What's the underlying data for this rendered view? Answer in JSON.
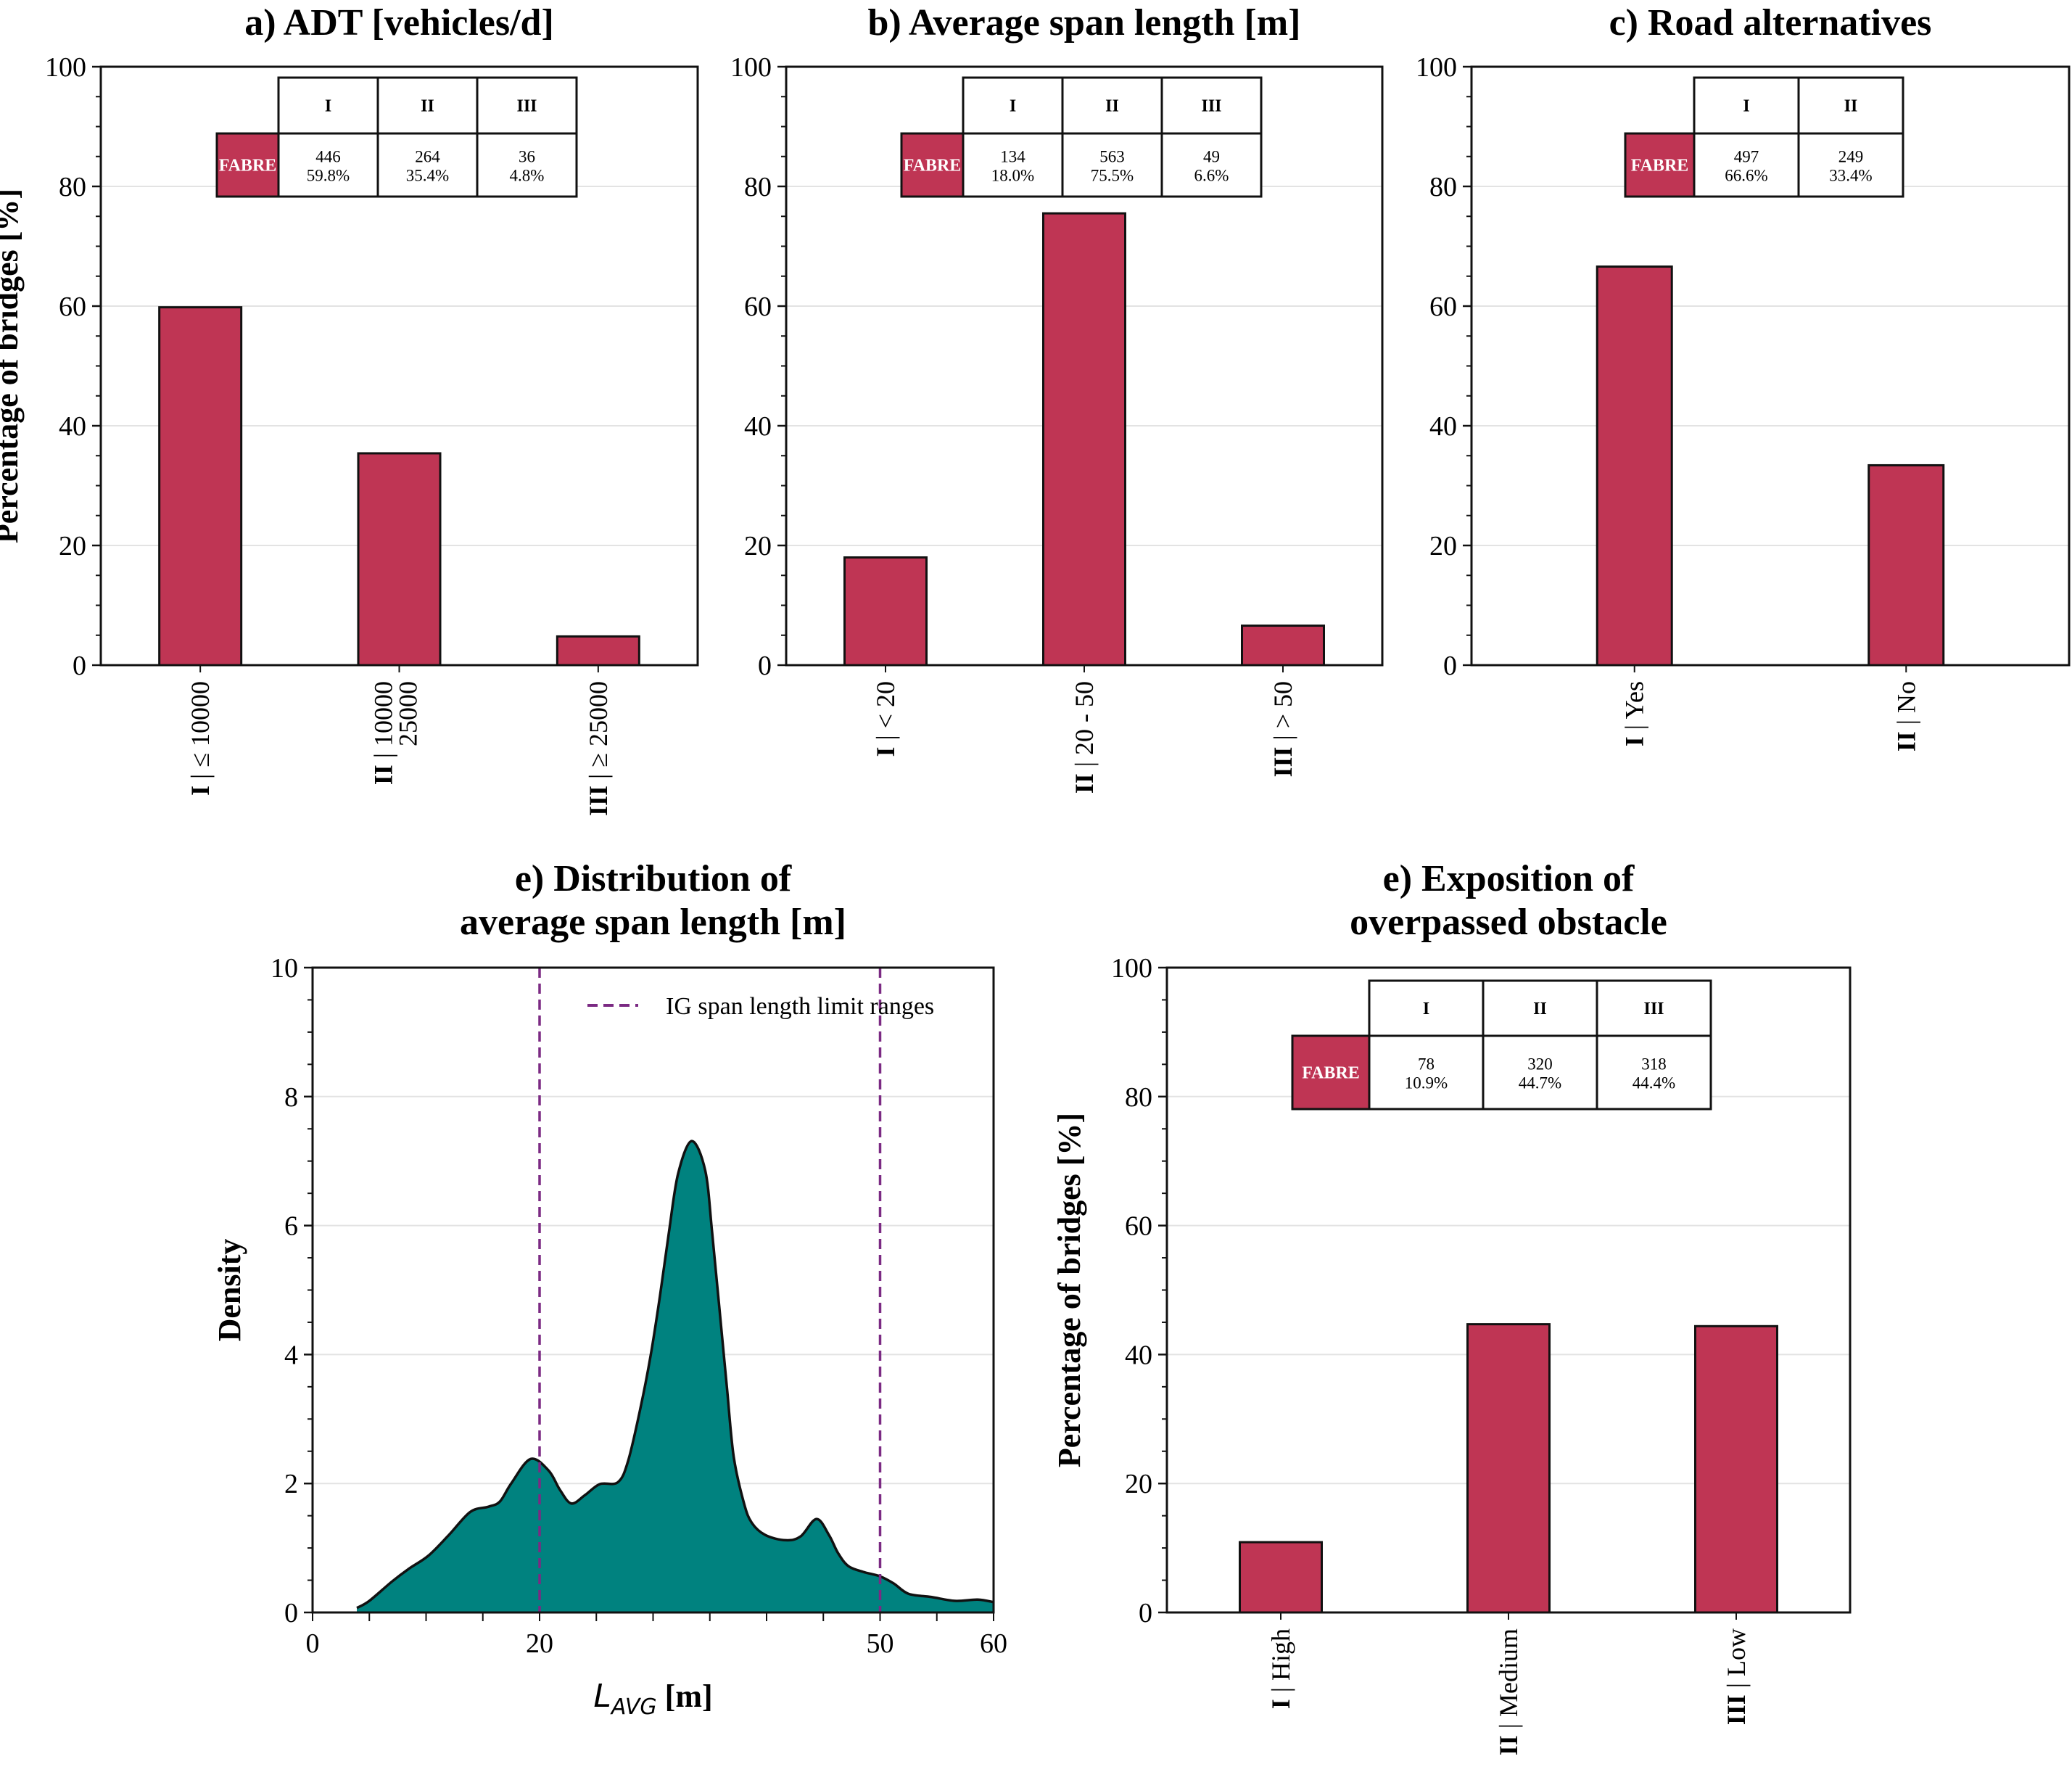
{
  "colors": {
    "bar": "#bf3554",
    "bar_edge": "#111111",
    "density_fill": "#00827f",
    "limit_line": "#7b2a83",
    "grid": "#e3e3e3",
    "table_label_bg": "#bf3554"
  },
  "chart_data": [
    {
      "id": "a",
      "type": "bar",
      "title": "a) ADT [vehicles/d]",
      "ylabel": "Percentage of bridges [%]",
      "xlabel": "",
      "ylim": [
        0,
        100
      ],
      "yticks": [
        0,
        20,
        40,
        60,
        80,
        100
      ],
      "grid": "horizontal",
      "categories": [
        {
          "roman": "I",
          "label": "| ≤ 10000",
          "label2": ""
        },
        {
          "roman": "II",
          "label": "| 10000",
          "label2": "25000"
        },
        {
          "roman": "III",
          "label": "| ≥ 25000",
          "label2": ""
        }
      ],
      "values": [
        59.8,
        35.4,
        4.8
      ],
      "table": {
        "row_label": "FABRE",
        "headers": [
          "I",
          "II",
          "III"
        ],
        "counts": [
          "446",
          "264",
          "36"
        ],
        "percents": [
          "59.8%",
          "35.4%",
          "4.8%"
        ]
      }
    },
    {
      "id": "b",
      "type": "bar",
      "title": "b) Average span length [m]",
      "ylabel": "",
      "xlabel": "",
      "ylim": [
        0,
        100
      ],
      "yticks": [
        0,
        20,
        40,
        60,
        80,
        100
      ],
      "grid": "horizontal",
      "categories": [
        {
          "roman": "I",
          "label": "| < 20",
          "label2": ""
        },
        {
          "roman": "II",
          "label": "| 20 - 50",
          "label2": ""
        },
        {
          "roman": "III",
          "label": "| > 50",
          "label2": ""
        }
      ],
      "values": [
        18.0,
        75.5,
        6.6
      ],
      "table": {
        "row_label": "FABRE",
        "headers": [
          "I",
          "II",
          "III"
        ],
        "counts": [
          "134",
          "563",
          "49"
        ],
        "percents": [
          "18.0%",
          "75.5%",
          "6.6%"
        ]
      }
    },
    {
      "id": "c",
      "type": "bar",
      "title": "c) Road alternatives",
      "ylabel": "",
      "xlabel": "",
      "ylim": [
        0,
        100
      ],
      "yticks": [
        0,
        20,
        40,
        60,
        80,
        100
      ],
      "grid": "horizontal",
      "categories": [
        {
          "roman": "I",
          "label": "| Yes",
          "label2": ""
        },
        {
          "roman": "II",
          "label": "| No",
          "label2": ""
        }
      ],
      "values": [
        66.6,
        33.4
      ],
      "table": {
        "row_label": "FABRE",
        "headers": [
          "I",
          "II"
        ],
        "counts": [
          "497",
          "249"
        ],
        "percents": [
          "66.6%",
          "33.4%"
        ]
      }
    },
    {
      "id": "d",
      "type": "area",
      "title": [
        "e) Distribution of",
        "average span length [m]"
      ],
      "ylabel": "Density",
      "xlabel_main": "L",
      "xlabel_sub": "AVG",
      "xlabel_unit": " [m]",
      "xlim": [
        0,
        60
      ],
      "ylim": [
        0,
        10
      ],
      "xticks": [
        0,
        20,
        50,
        60
      ],
      "xminor_step": 5,
      "yticks": [
        0,
        2,
        4,
        6,
        8,
        10
      ],
      "grid": "horizontal",
      "legend": {
        "label": "IG span length limit ranges",
        "position": "top-right"
      },
      "vlines": [
        20,
        50
      ],
      "x": [
        3.9,
        5.0,
        7.0,
        8.5,
        10.2,
        12.0,
        13.9,
        15.5,
        16.5,
        17.5,
        19.2,
        20.8,
        21.8,
        22.8,
        24.0,
        25.3,
        26.9,
        27.8,
        28.9,
        29.8,
        30.6,
        31.4,
        32.2,
        33.4,
        34.6,
        35.2,
        35.8,
        36.5,
        37.1,
        38.0,
        38.7,
        39.9,
        41.7,
        43.0,
        44.4,
        45.5,
        46.3,
        47.2,
        48.5,
        50.0,
        51.2,
        52.5,
        54.5,
        56.6,
        58.6,
        60.0
      ],
      "y": [
        0.07,
        0.18,
        0.48,
        0.68,
        0.88,
        1.2,
        1.56,
        1.64,
        1.72,
        2.0,
        2.38,
        2.2,
        1.9,
        1.69,
        1.82,
        1.99,
        2.02,
        2.35,
        3.18,
        4.0,
        4.9,
        5.9,
        6.8,
        7.31,
        6.85,
        5.9,
        4.8,
        3.5,
        2.42,
        1.7,
        1.39,
        1.2,
        1.12,
        1.18,
        1.45,
        1.2,
        0.92,
        0.72,
        0.63,
        0.56,
        0.45,
        0.29,
        0.24,
        0.18,
        0.2,
        0.16
      ]
    },
    {
      "id": "e",
      "type": "bar",
      "title": [
        "e) Exposition of",
        "overpassed obstacle"
      ],
      "ylabel": "Percentage of bridges [%]",
      "xlabel": "",
      "ylim": [
        0,
        100
      ],
      "yticks": [
        0,
        20,
        40,
        60,
        80,
        100
      ],
      "grid": "horizontal",
      "categories": [
        {
          "roman": "I",
          "label": "| High",
          "label2": ""
        },
        {
          "roman": "II",
          "label": "| Medium",
          "label2": ""
        },
        {
          "roman": "III",
          "label": "| Low",
          "label2": ""
        }
      ],
      "values": [
        10.9,
        44.7,
        44.4
      ],
      "table": {
        "row_label": "FABRE",
        "headers": [
          "I",
          "II",
          "III"
        ],
        "counts": [
          "78",
          "320",
          "318"
        ],
        "percents": [
          "10.9%",
          "44.7%",
          "44.4%"
        ]
      }
    }
  ]
}
